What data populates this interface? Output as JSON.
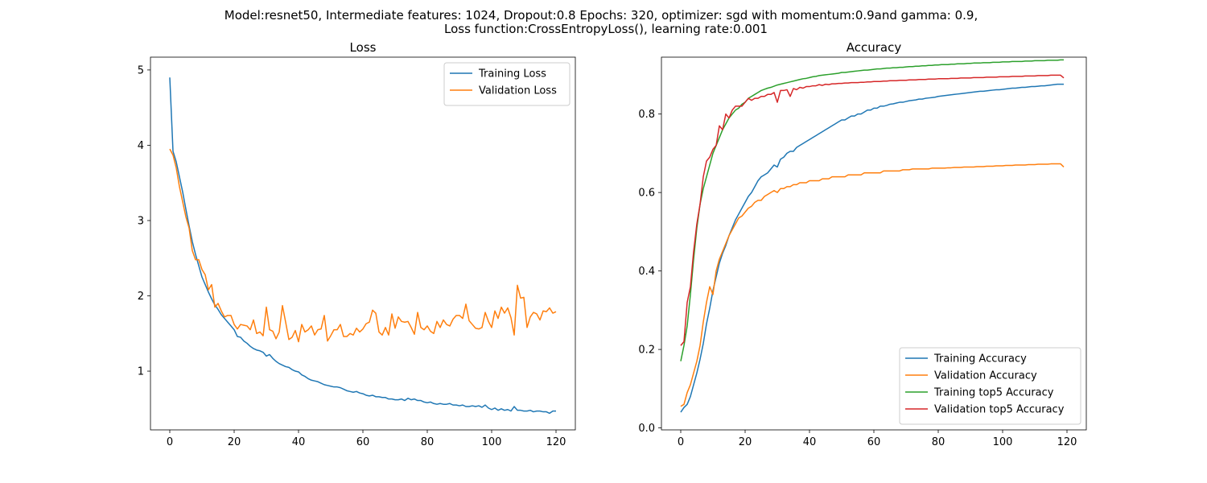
{
  "figure": {
    "suptitle_line1": "Model:resnet50, Intermediate features: 1024, Dropout:0.8 Epochs: 320, optimizer: sgd with momentum:0.9and gamma: 0.9,",
    "suptitle_line2": "Loss function:CrossEntropyLoss(), learning rate:0.001"
  },
  "chart_data": [
    {
      "type": "line",
      "title": "Loss",
      "xlabel": "",
      "ylabel": "",
      "xlim": [
        -6,
        126
      ],
      "ylim": [
        0.22,
        5.17
      ],
      "xticks": [
        0,
        20,
        40,
        60,
        80,
        100,
        120
      ],
      "yticks": [
        1,
        2,
        3,
        4,
        5
      ],
      "grid": false,
      "legend": "top-right",
      "series": [
        {
          "name": "Training Loss",
          "color": "#1f77b4",
          "values": [
            4.9,
            3.92,
            3.78,
            3.58,
            3.38,
            3.15,
            2.93,
            2.72,
            2.55,
            2.4,
            2.25,
            2.15,
            2.05,
            1.96,
            1.88,
            1.82,
            1.75,
            1.7,
            1.65,
            1.6,
            1.55,
            1.46,
            1.45,
            1.4,
            1.37,
            1.33,
            1.3,
            1.28,
            1.27,
            1.25,
            1.2,
            1.22,
            1.17,
            1.13,
            1.1,
            1.08,
            1.06,
            1.05,
            1.02,
            1.0,
            0.99,
            0.95,
            0.93,
            0.9,
            0.88,
            0.87,
            0.86,
            0.84,
            0.82,
            0.81,
            0.8,
            0.79,
            0.79,
            0.78,
            0.76,
            0.74,
            0.73,
            0.72,
            0.73,
            0.71,
            0.7,
            0.68,
            0.67,
            0.68,
            0.66,
            0.66,
            0.65,
            0.65,
            0.63,
            0.63,
            0.62,
            0.62,
            0.63,
            0.61,
            0.64,
            0.62,
            0.63,
            0.61,
            0.61,
            0.59,
            0.58,
            0.59,
            0.57,
            0.56,
            0.57,
            0.56,
            0.56,
            0.57,
            0.55,
            0.55,
            0.54,
            0.55,
            0.53,
            0.53,
            0.54,
            0.53,
            0.54,
            0.52,
            0.55,
            0.51,
            0.49,
            0.51,
            0.48,
            0.5,
            0.48,
            0.49,
            0.47,
            0.53,
            0.48,
            0.48,
            0.47,
            0.47,
            0.48,
            0.46,
            0.47,
            0.47,
            0.46,
            0.46,
            0.44,
            0.47,
            0.47
          ]
        },
        {
          "name": "Validation Loss",
          "color": "#ff7f0e",
          "values": [
            3.95,
            3.87,
            3.7,
            3.45,
            3.25,
            3.05,
            2.9,
            2.6,
            2.48,
            2.48,
            2.35,
            2.28,
            2.08,
            2.15,
            1.85,
            1.9,
            1.8,
            1.72,
            1.74,
            1.74,
            1.62,
            1.56,
            1.62,
            1.61,
            1.6,
            1.55,
            1.68,
            1.5,
            1.52,
            1.47,
            1.85,
            1.55,
            1.53,
            1.43,
            1.52,
            1.87,
            1.65,
            1.42,
            1.45,
            1.54,
            1.39,
            1.62,
            1.52,
            1.55,
            1.6,
            1.48,
            1.55,
            1.56,
            1.74,
            1.4,
            1.47,
            1.55,
            1.55,
            1.62,
            1.46,
            1.46,
            1.5,
            1.48,
            1.57,
            1.52,
            1.56,
            1.63,
            1.65,
            1.81,
            1.77,
            1.52,
            1.48,
            1.58,
            1.48,
            1.76,
            1.57,
            1.72,
            1.66,
            1.65,
            1.66,
            1.58,
            1.49,
            1.78,
            1.58,
            1.55,
            1.6,
            1.53,
            1.5,
            1.66,
            1.58,
            1.68,
            1.62,
            1.6,
            1.69,
            1.74,
            1.74,
            1.7,
            1.89,
            1.67,
            1.62,
            1.57,
            1.56,
            1.58,
            1.78,
            1.66,
            1.58,
            1.8,
            1.7,
            1.85,
            1.77,
            1.84,
            1.71,
            1.48,
            2.14,
            1.97,
            1.98,
            1.58,
            1.72,
            1.78,
            1.76,
            1.68,
            1.8,
            1.79,
            1.84,
            1.77,
            1.79
          ]
        }
      ]
    },
    {
      "type": "line",
      "title": "Accuracy",
      "xlabel": "",
      "ylabel": "",
      "xlim": [
        -6,
        126
      ],
      "ylim": [
        -0.005,
        0.945
      ],
      "xticks": [
        0,
        20,
        40,
        60,
        80,
        100,
        120
      ],
      "yticks": [
        0.0,
        0.2,
        0.4,
        0.6,
        0.8
      ],
      "grid": false,
      "legend": "bottom-right",
      "series": [
        {
          "name": "Training Accuracy",
          "color": "#1f77b4",
          "values": [
            0.04,
            0.052,
            0.06,
            0.08,
            0.11,
            0.14,
            0.175,
            0.215,
            0.265,
            0.305,
            0.35,
            0.385,
            0.42,
            0.445,
            0.465,
            0.49,
            0.51,
            0.53,
            0.545,
            0.56,
            0.575,
            0.59,
            0.6,
            0.615,
            0.63,
            0.64,
            0.645,
            0.65,
            0.66,
            0.67,
            0.665,
            0.685,
            0.69,
            0.7,
            0.705,
            0.705,
            0.715,
            0.72,
            0.725,
            0.73,
            0.735,
            0.74,
            0.745,
            0.75,
            0.755,
            0.76,
            0.765,
            0.77,
            0.775,
            0.78,
            0.785,
            0.785,
            0.79,
            0.795,
            0.795,
            0.8,
            0.8,
            0.805,
            0.81,
            0.81,
            0.815,
            0.815,
            0.82,
            0.82,
            0.822,
            0.825,
            0.826,
            0.828,
            0.83,
            0.83,
            0.832,
            0.834,
            0.835,
            0.836,
            0.838,
            0.838,
            0.84,
            0.841,
            0.842,
            0.843,
            0.845,
            0.846,
            0.847,
            0.848,
            0.849,
            0.85,
            0.851,
            0.852,
            0.853,
            0.854,
            0.855,
            0.856,
            0.857,
            0.858,
            0.858,
            0.859,
            0.86,
            0.861,
            0.862,
            0.862,
            0.863,
            0.864,
            0.865,
            0.866,
            0.866,
            0.867,
            0.868,
            0.868,
            0.869,
            0.87,
            0.87,
            0.871,
            0.872,
            0.872,
            0.873,
            0.874,
            0.875,
            0.876,
            0.876,
            0.876
          ]
        },
        {
          "name": "Validation Accuracy",
          "color": "#ff7f0e",
          "values": [
            0.055,
            0.06,
            0.09,
            0.11,
            0.14,
            0.17,
            0.21,
            0.27,
            0.32,
            0.36,
            0.34,
            0.4,
            0.43,
            0.45,
            0.47,
            0.49,
            0.505,
            0.52,
            0.535,
            0.54,
            0.55,
            0.56,
            0.565,
            0.575,
            0.58,
            0.58,
            0.59,
            0.595,
            0.6,
            0.605,
            0.6,
            0.61,
            0.61,
            0.615,
            0.615,
            0.62,
            0.62,
            0.625,
            0.625,
            0.625,
            0.63,
            0.63,
            0.63,
            0.63,
            0.635,
            0.635,
            0.635,
            0.64,
            0.64,
            0.64,
            0.64,
            0.64,
            0.645,
            0.645,
            0.645,
            0.645,
            0.645,
            0.65,
            0.65,
            0.65,
            0.65,
            0.65,
            0.65,
            0.655,
            0.655,
            0.655,
            0.655,
            0.655,
            0.655,
            0.658,
            0.658,
            0.658,
            0.66,
            0.66,
            0.66,
            0.66,
            0.66,
            0.66,
            0.662,
            0.662,
            0.662,
            0.662,
            0.662,
            0.663,
            0.663,
            0.664,
            0.664,
            0.664,
            0.665,
            0.665,
            0.665,
            0.665,
            0.666,
            0.666,
            0.666,
            0.667,
            0.667,
            0.667,
            0.668,
            0.668,
            0.668,
            0.669,
            0.669,
            0.669,
            0.67,
            0.67,
            0.67,
            0.67,
            0.671,
            0.671,
            0.671,
            0.672,
            0.672,
            0.672,
            0.672,
            0.673,
            0.673,
            0.673,
            0.673,
            0.665
          ]
        },
        {
          "name": "Training top5 Accuracy",
          "color": "#2ca02c",
          "values": [
            0.17,
            0.21,
            0.26,
            0.34,
            0.43,
            0.51,
            0.57,
            0.61,
            0.64,
            0.67,
            0.7,
            0.72,
            0.74,
            0.76,
            0.775,
            0.79,
            0.8,
            0.81,
            0.815,
            0.825,
            0.83,
            0.84,
            0.845,
            0.85,
            0.855,
            0.86,
            0.863,
            0.866,
            0.868,
            0.871,
            0.874,
            0.876,
            0.878,
            0.88,
            0.882,
            0.884,
            0.886,
            0.888,
            0.89,
            0.891,
            0.893,
            0.895,
            0.896,
            0.898,
            0.899,
            0.9,
            0.901,
            0.902,
            0.903,
            0.904,
            0.906,
            0.906,
            0.907,
            0.908,
            0.909,
            0.91,
            0.911,
            0.912,
            0.912,
            0.913,
            0.914,
            0.915,
            0.915,
            0.916,
            0.917,
            0.917,
            0.918,
            0.918,
            0.919,
            0.919,
            0.92,
            0.921,
            0.921,
            0.922,
            0.922,
            0.923,
            0.923,
            0.924,
            0.924,
            0.925,
            0.925,
            0.926,
            0.926,
            0.926,
            0.927,
            0.927,
            0.928,
            0.928,
            0.928,
            0.929,
            0.929,
            0.93,
            0.93,
            0.93,
            0.931,
            0.931,
            0.931,
            0.932,
            0.932,
            0.932,
            0.933,
            0.933,
            0.933,
            0.934,
            0.934,
            0.934,
            0.934,
            0.935,
            0.935,
            0.935,
            0.936,
            0.936,
            0.936,
            0.936,
            0.937,
            0.937,
            0.937,
            0.937,
            0.938,
            0.938
          ]
        },
        {
          "name": "Validation top5 Accuracy",
          "color": "#d62728",
          "values": [
            0.21,
            0.22,
            0.32,
            0.36,
            0.45,
            0.52,
            0.57,
            0.64,
            0.68,
            0.69,
            0.71,
            0.72,
            0.77,
            0.76,
            0.8,
            0.79,
            0.81,
            0.82,
            0.82,
            0.82,
            0.83,
            0.84,
            0.835,
            0.84,
            0.84,
            0.845,
            0.845,
            0.85,
            0.85,
            0.855,
            0.83,
            0.86,
            0.86,
            0.862,
            0.845,
            0.865,
            0.862,
            0.868,
            0.866,
            0.87,
            0.87,
            0.872,
            0.872,
            0.875,
            0.873,
            0.876,
            0.875,
            0.877,
            0.877,
            0.878,
            0.878,
            0.879,
            0.879,
            0.88,
            0.88,
            0.88,
            0.881,
            0.881,
            0.882,
            0.882,
            0.883,
            0.883,
            0.883,
            0.884,
            0.884,
            0.885,
            0.885,
            0.885,
            0.886,
            0.886,
            0.886,
            0.887,
            0.887,
            0.887,
            0.888,
            0.888,
            0.888,
            0.889,
            0.889,
            0.889,
            0.89,
            0.89,
            0.89,
            0.89,
            0.891,
            0.891,
            0.891,
            0.892,
            0.892,
            0.892,
            0.892,
            0.893,
            0.893,
            0.893,
            0.893,
            0.894,
            0.894,
            0.894,
            0.894,
            0.895,
            0.895,
            0.895,
            0.895,
            0.896,
            0.896,
            0.896,
            0.896,
            0.897,
            0.897,
            0.897,
            0.897,
            0.898,
            0.898,
            0.898,
            0.898,
            0.899,
            0.899,
            0.899,
            0.899,
            0.892
          ]
        }
      ]
    }
  ]
}
